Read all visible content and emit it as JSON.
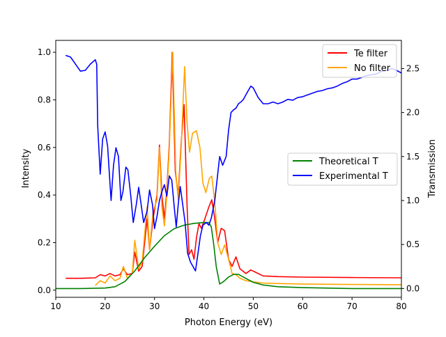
{
  "chart_data": {
    "type": "line",
    "xlabel": "Photon Energy (eV)",
    "ylabel": "Intensity",
    "y2label": "Transmission",
    "xlim": [
      10,
      80
    ],
    "ylim": [
      -0.03,
      1.05
    ],
    "y2lim": [
      -0.1,
      2.82
    ],
    "xticks": [
      10,
      20,
      30,
      40,
      50,
      60,
      70,
      80
    ],
    "yticks": [
      0.0,
      0.2,
      0.4,
      0.6,
      0.8,
      1.0
    ],
    "y2ticks": [
      0.0,
      0.5,
      1.0,
      1.5,
      2.0,
      2.5
    ],
    "xtick_labels": [
      "10",
      "20",
      "30",
      "40",
      "50",
      "60",
      "70",
      "80"
    ],
    "ytick_labels": [
      "0.0",
      "0.2",
      "0.4",
      "0.6",
      "0.8",
      "1.0"
    ],
    "y2tick_labels": [
      "0.0",
      "0.5",
      "1.0",
      "1.5",
      "2.0",
      "2.5"
    ],
    "legend_top_right": [
      "Te filter",
      "No filter"
    ],
    "legend_mid_right": [
      "Theoretical T",
      "Experimental T"
    ],
    "series": [
      {
        "name": "Te filter",
        "axis": "left",
        "color": "#ff0000",
        "points": [
          [
            12,
            0.05
          ],
          [
            15,
            0.05
          ],
          [
            18,
            0.052
          ],
          [
            19,
            0.065
          ],
          [
            20,
            0.06
          ],
          [
            21,
            0.07
          ],
          [
            22,
            0.06
          ],
          [
            23,
            0.065
          ],
          [
            23.7,
            0.09
          ],
          [
            24.5,
            0.065
          ],
          [
            25.5,
            0.07
          ],
          [
            26,
            0.16
          ],
          [
            26.8,
            0.08
          ],
          [
            27.5,
            0.1
          ],
          [
            28.5,
            0.3
          ],
          [
            29,
            0.17
          ],
          [
            29.7,
            0.3
          ],
          [
            30.5,
            0.4
          ],
          [
            31,
            0.61
          ],
          [
            31.5,
            0.4
          ],
          [
            32,
            0.3
          ],
          [
            32.5,
            0.42
          ],
          [
            33,
            0.62
          ],
          [
            33.6,
            1.0
          ],
          [
            34.2,
            0.5
          ],
          [
            34.8,
            0.4
          ],
          [
            35.4,
            0.62
          ],
          [
            36,
            0.78
          ],
          [
            36.6,
            0.35
          ],
          [
            37,
            0.15
          ],
          [
            37.5,
            0.17
          ],
          [
            38,
            0.13
          ],
          [
            38.5,
            0.22
          ],
          [
            39,
            0.28
          ],
          [
            39.5,
            0.26
          ],
          [
            40.2,
            0.3
          ],
          [
            41,
            0.35
          ],
          [
            41.6,
            0.38
          ],
          [
            42.2,
            0.3
          ],
          [
            42.8,
            0.2
          ],
          [
            43.5,
            0.26
          ],
          [
            44.2,
            0.25
          ],
          [
            45,
            0.13
          ],
          [
            45.7,
            0.1
          ],
          [
            46.5,
            0.14
          ],
          [
            47.3,
            0.09
          ],
          [
            48.5,
            0.07
          ],
          [
            49.5,
            0.085
          ],
          [
            50.5,
            0.075
          ],
          [
            52,
            0.06
          ],
          [
            55,
            0.057
          ],
          [
            60,
            0.055
          ],
          [
            70,
            0.053
          ],
          [
            80,
            0.052
          ]
        ]
      },
      {
        "name": "No filter",
        "axis": "left",
        "color": "#ffa500",
        "points": [
          [
            18,
            0.02
          ],
          [
            19,
            0.04
          ],
          [
            20,
            0.03
          ],
          [
            21,
            0.06
          ],
          [
            22,
            0.04
          ],
          [
            23,
            0.05
          ],
          [
            23.7,
            0.1
          ],
          [
            24.5,
            0.05
          ],
          [
            25.5,
            0.07
          ],
          [
            26,
            0.21
          ],
          [
            26.8,
            0.09
          ],
          [
            27.5,
            0.12
          ],
          [
            28.5,
            0.35
          ],
          [
            29,
            0.17
          ],
          [
            29.7,
            0.33
          ],
          [
            30.5,
            0.38
          ],
          [
            31,
            0.6
          ],
          [
            31.5,
            0.35
          ],
          [
            32,
            0.27
          ],
          [
            32.5,
            0.4
          ],
          [
            33,
            0.6
          ],
          [
            33.7,
            1.0
          ],
          [
            34.3,
            0.5
          ],
          [
            34.8,
            0.38
          ],
          [
            35.4,
            0.6
          ],
          [
            36.1,
            0.94
          ],
          [
            36.6,
            0.7
          ],
          [
            37.1,
            0.58
          ],
          [
            37.7,
            0.66
          ],
          [
            38.5,
            0.67
          ],
          [
            39.2,
            0.6
          ],
          [
            39.8,
            0.45
          ],
          [
            40.4,
            0.41
          ],
          [
            41.1,
            0.47
          ],
          [
            41.6,
            0.48
          ],
          [
            42.2,
            0.37
          ],
          [
            42.8,
            0.2
          ],
          [
            43.5,
            0.15
          ],
          [
            44.2,
            0.19
          ],
          [
            45,
            0.13
          ],
          [
            45.7,
            0.07
          ],
          [
            46.5,
            0.065
          ],
          [
            47.3,
            0.05
          ],
          [
            48.5,
            0.04
          ],
          [
            50,
            0.035
          ],
          [
            52,
            0.03
          ],
          [
            55,
            0.028
          ],
          [
            60,
            0.026
          ],
          [
            70,
            0.024
          ],
          [
            80,
            0.023
          ]
        ]
      },
      {
        "name": "Theoretical T",
        "axis": "right",
        "color": "#008000",
        "points": [
          [
            10,
            0.0
          ],
          [
            15,
            0.0
          ],
          [
            20,
            0.005
          ],
          [
            22,
            0.02
          ],
          [
            24,
            0.08
          ],
          [
            26,
            0.2
          ],
          [
            28,
            0.35
          ],
          [
            30,
            0.48
          ],
          [
            32,
            0.6
          ],
          [
            34,
            0.68
          ],
          [
            36,
            0.72
          ],
          [
            38,
            0.74
          ],
          [
            40,
            0.75
          ],
          [
            41,
            0.75
          ],
          [
            41.5,
            0.7
          ],
          [
            42,
            0.5
          ],
          [
            42.5,
            0.25
          ],
          [
            43.2,
            0.05
          ],
          [
            44,
            0.08
          ],
          [
            45,
            0.13
          ],
          [
            46,
            0.16
          ],
          [
            47,
            0.16
          ],
          [
            48,
            0.13
          ],
          [
            50,
            0.07
          ],
          [
            52,
            0.04
          ],
          [
            55,
            0.02
          ],
          [
            60,
            0.01
          ],
          [
            70,
            0.0
          ],
          [
            80,
            0.0
          ]
        ]
      },
      {
        "name": "Experimental T",
        "axis": "right",
        "color": "#0000ff",
        "points": [
          [
            12,
            2.65
          ],
          [
            13,
            2.63
          ],
          [
            14,
            2.55
          ],
          [
            15,
            2.47
          ],
          [
            16,
            2.48
          ],
          [
            17,
            2.55
          ],
          [
            18,
            2.6
          ],
          [
            18.3,
            2.55
          ],
          [
            18.5,
            1.85
          ],
          [
            19,
            1.3
          ],
          [
            19.5,
            1.7
          ],
          [
            20,
            1.78
          ],
          [
            20.5,
            1.62
          ],
          [
            21.2,
            1.0
          ],
          [
            21.7,
            1.4
          ],
          [
            22.2,
            1.6
          ],
          [
            22.7,
            1.5
          ],
          [
            23.2,
            1.0
          ],
          [
            23.6,
            1.1
          ],
          [
            24.2,
            1.38
          ],
          [
            24.6,
            1.35
          ],
          [
            25.2,
            1.05
          ],
          [
            25.7,
            0.75
          ],
          [
            26.3,
            0.95
          ],
          [
            26.8,
            1.15
          ],
          [
            27.3,
            0.95
          ],
          [
            27.8,
            0.75
          ],
          [
            28.5,
            0.88
          ],
          [
            29,
            1.12
          ],
          [
            29.6,
            0.95
          ],
          [
            30,
            0.68
          ],
          [
            30.5,
            0.82
          ],
          [
            31,
            1.0
          ],
          [
            31.5,
            1.1
          ],
          [
            32,
            1.18
          ],
          [
            32.5,
            1.05
          ],
          [
            33,
            1.28
          ],
          [
            33.5,
            1.23
          ],
          [
            34,
            0.92
          ],
          [
            34.4,
            0.7
          ],
          [
            34.8,
            0.95
          ],
          [
            35.2,
            1.16
          ],
          [
            35.6,
            1.0
          ],
          [
            36.2,
            0.75
          ],
          [
            36.7,
            0.4
          ],
          [
            37.3,
            0.3
          ],
          [
            37.8,
            0.25
          ],
          [
            38.3,
            0.2
          ],
          [
            38.8,
            0.4
          ],
          [
            39.3,
            0.6
          ],
          [
            39.8,
            0.72
          ],
          [
            40.5,
            0.75
          ],
          [
            41,
            0.72
          ],
          [
            41.5,
            0.8
          ],
          [
            42.2,
            1.0
          ],
          [
            42.8,
            1.3
          ],
          [
            43.2,
            1.5
          ],
          [
            43.8,
            1.4
          ],
          [
            44.5,
            1.5
          ],
          [
            45,
            1.8
          ],
          [
            45.5,
            2.0
          ],
          [
            46,
            2.03
          ],
          [
            46.5,
            2.05
          ],
          [
            47,
            2.1
          ],
          [
            47.5,
            2.12
          ],
          [
            48,
            2.15
          ],
          [
            48.5,
            2.2
          ],
          [
            49,
            2.25
          ],
          [
            49.5,
            2.3
          ],
          [
            50,
            2.28
          ],
          [
            51,
            2.17
          ],
          [
            52,
            2.1
          ],
          [
            53,
            2.1
          ],
          [
            54,
            2.12
          ],
          [
            55,
            2.1
          ],
          [
            56,
            2.12
          ],
          [
            57,
            2.15
          ],
          [
            58,
            2.14
          ],
          [
            59,
            2.17
          ],
          [
            60,
            2.18
          ],
          [
            61,
            2.2
          ],
          [
            62,
            2.22
          ],
          [
            63,
            2.24
          ],
          [
            64,
            2.25
          ],
          [
            65,
            2.27
          ],
          [
            66,
            2.28
          ],
          [
            67,
            2.3
          ],
          [
            68,
            2.33
          ],
          [
            69,
            2.35
          ],
          [
            70,
            2.38
          ],
          [
            71,
            2.38
          ],
          [
            72,
            2.4
          ],
          [
            73,
            2.42
          ],
          [
            74,
            2.43
          ],
          [
            75,
            2.44
          ],
          [
            76,
            2.47
          ],
          [
            77,
            2.48
          ],
          [
            78,
            2.5
          ],
          [
            79,
            2.48
          ],
          [
            80,
            2.45
          ]
        ]
      }
    ]
  }
}
